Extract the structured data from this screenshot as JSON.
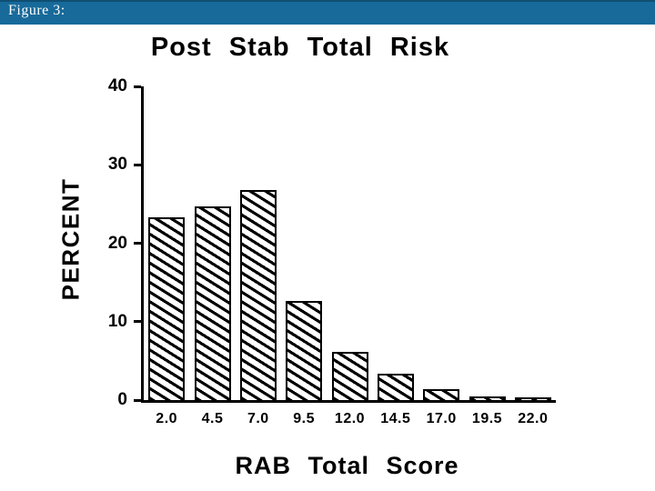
{
  "header": {
    "label": "Figure 3:",
    "bg_color": "#176a9a",
    "text_color": "#ffffff"
  },
  "chart_data": {
    "type": "bar",
    "title": "Post Stab Total Risk",
    "xlabel": "RAB Total Score",
    "ylabel": "PERCENT",
    "categories": [
      "2.0",
      "4.5",
      "7.0",
      "9.5",
      "12.0",
      "14.5",
      "17.0",
      "19.5",
      "22.0"
    ],
    "values": [
      23.3,
      24.7,
      26.8,
      12.6,
      6.1,
      3.4,
      1.4,
      0.5,
      0.3
    ],
    "ylim": [
      0,
      40
    ],
    "yticks": [
      0,
      10,
      20,
      30,
      40
    ],
    "bar_fill": "diagonal-hatch",
    "bar_color": "#000000",
    "background_color": "#ffffff",
    "grid": false,
    "legend": false
  }
}
